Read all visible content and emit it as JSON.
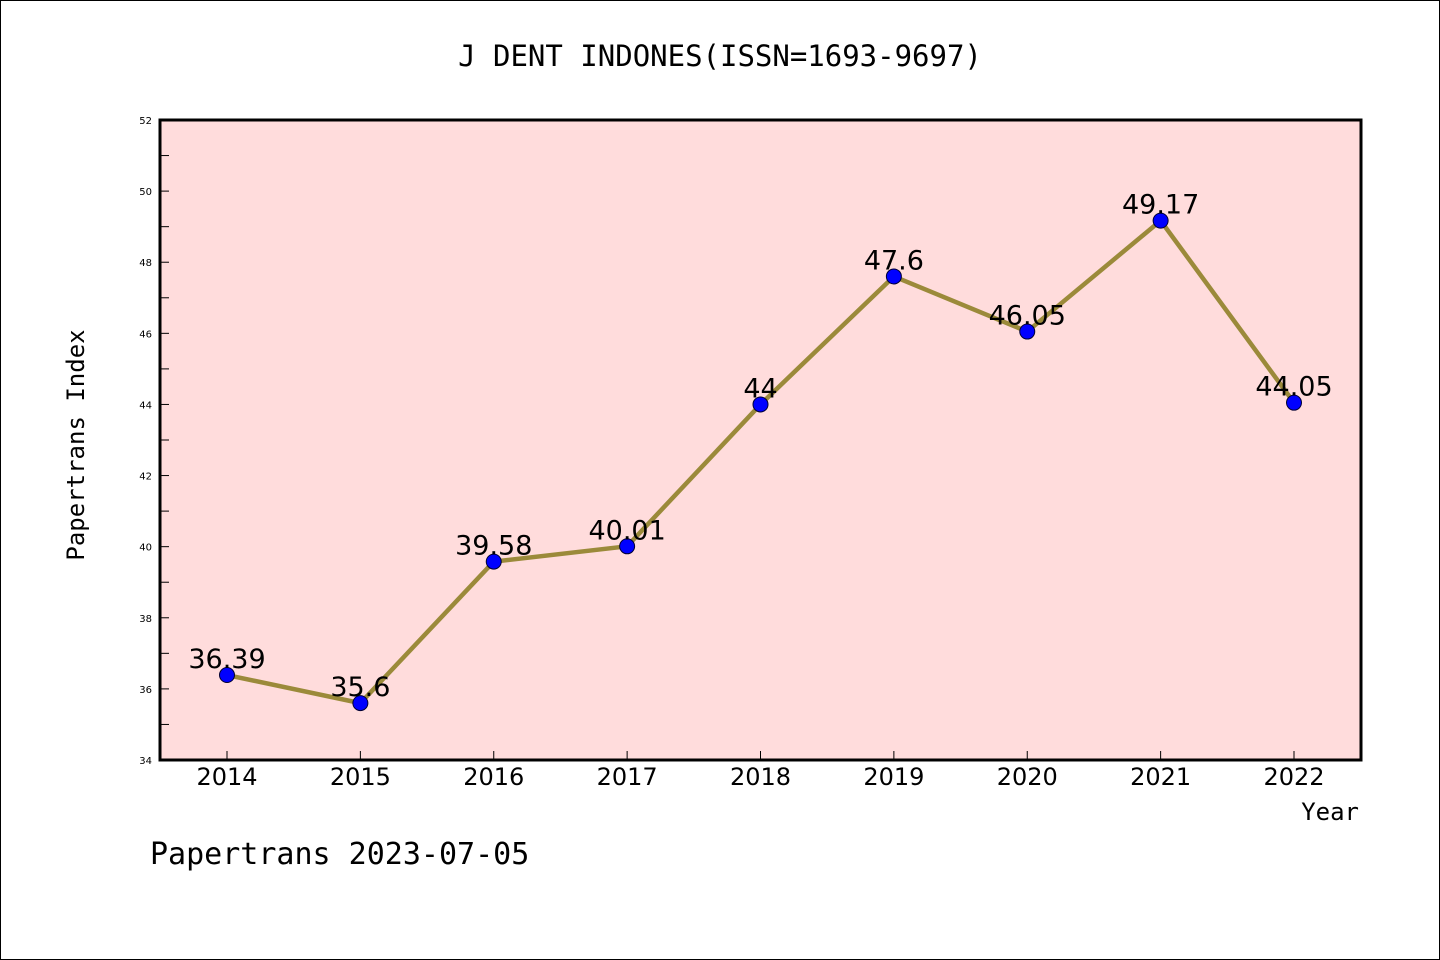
{
  "chart_data": {
    "type": "line",
    "title": "J DENT INDONES(ISSN=1693-9697)",
    "xlabel": "Year",
    "ylabel": "Papertrans Index",
    "footer": "Papertrans 2023-07-05",
    "categories": [
      "2014",
      "2015",
      "2016",
      "2017",
      "2018",
      "2019",
      "2020",
      "2021",
      "2022"
    ],
    "series": [
      {
        "values": [
          36.39,
          35.6,
          39.58,
          40.01,
          44,
          47.6,
          46.05,
          49.17,
          44.05
        ],
        "labels": [
          "36.39",
          "35.6",
          "39.58",
          "40.01",
          "44",
          "47.6",
          "46.05",
          "49.17",
          "44.05"
        ]
      }
    ],
    "ylim": [
      34,
      52
    ],
    "yticks": [
      "34",
      "36",
      "38",
      "40",
      "42",
      "44",
      "46",
      "48",
      "50",
      "52"
    ],
    "grid": false,
    "colors": {
      "plot_background": "#ffdcdc",
      "line": "#9b8a3a",
      "marker": "#0000ff"
    }
  }
}
